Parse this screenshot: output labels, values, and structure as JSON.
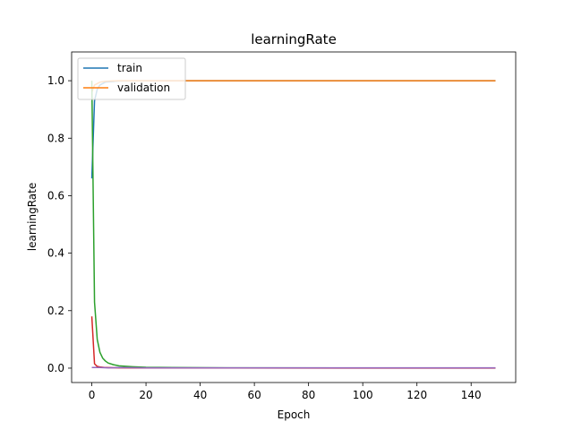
{
  "chart_data": {
    "type": "line",
    "title": "learningRate",
    "xlabel": "Epoch",
    "ylabel": "learningRate",
    "xlim": [
      -7.45,
      156.45
    ],
    "ylim": [
      -0.05,
      1.1
    ],
    "xticks": [
      0,
      20,
      40,
      60,
      80,
      100,
      120,
      140
    ],
    "yticks": [
      0.0,
      0.2,
      0.4,
      0.6,
      0.8,
      1.0
    ],
    "ytick_labels": [
      "0.0",
      "0.2",
      "0.4",
      "0.6",
      "0.8",
      "1.0"
    ],
    "grid": false,
    "legend": {
      "placement": "top-left",
      "entries": [
        "train",
        "validation"
      ]
    },
    "series": [
      {
        "name": "train",
        "color": "#1f77b4",
        "x": [
          0,
          1,
          2,
          3,
          5,
          10,
          20,
          50,
          100,
          149
        ],
        "y": [
          0.66,
          0.93,
          0.97,
          0.985,
          0.995,
          0.999,
          1.0,
          1.0,
          1.0,
          1.0
        ]
      },
      {
        "name": "validation",
        "color": "#ff7f0e",
        "x": [
          0,
          1,
          2,
          3,
          5,
          10,
          20,
          50,
          100,
          149
        ],
        "y": [
          0.96,
          0.985,
          0.99,
          0.995,
          0.998,
          1.0,
          1.0,
          1.0,
          1.0,
          1.0
        ]
      },
      {
        "color": "#2ca02c",
        "x": [
          0,
          1,
          2,
          3,
          4,
          5,
          6,
          8,
          10,
          15,
          20,
          30,
          50,
          100,
          149
        ],
        "y": [
          1.0,
          0.23,
          0.1,
          0.055,
          0.035,
          0.025,
          0.018,
          0.012,
          0.008,
          0.005,
          0.003,
          0.002,
          0.001,
          0.0005,
          0.0005
        ]
      },
      {
        "color": "#d62728",
        "x": [
          0,
          1,
          2,
          3,
          5,
          10,
          20,
          50,
          100,
          149
        ],
        "y": [
          0.18,
          0.015,
          0.006,
          0.004,
          0.002,
          0.001,
          0.0008,
          0.0005,
          0.0003,
          0.0003
        ]
      },
      {
        "color": "#9467bd",
        "x": [
          0,
          3,
          6,
          10,
          20,
          40,
          80,
          120,
          149
        ],
        "y": [
          0.002,
          0.002,
          0.001,
          0.002,
          0.001,
          0.001,
          0.001,
          0.001,
          0.001
        ]
      }
    ]
  }
}
